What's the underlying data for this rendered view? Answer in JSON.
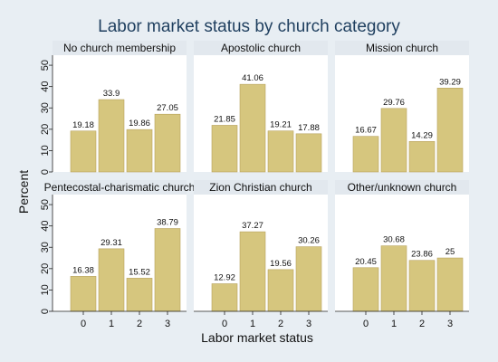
{
  "chart_data": {
    "type": "bar",
    "title": "Labor market status by church category",
    "xlabel": "Labor market status",
    "ylabel": "Percent",
    "categories": [
      "0",
      "1",
      "2",
      "3"
    ],
    "yticks": [
      "0",
      "10",
      "20",
      "30",
      "40",
      "50"
    ],
    "ylim": [
      0,
      53
    ],
    "grid": false,
    "colors": {
      "bar": "#d6c67e",
      "bar_stroke": "#b7a25c",
      "panel_header": "#e2e8ee",
      "plot_bg": "#ffffff",
      "page_bg": "#e8eef3"
    },
    "panels": [
      {
        "name": "No church membership",
        "values": [
          19.18,
          33.9,
          19.86,
          27.05
        ],
        "labels": [
          "19.18",
          "33.9",
          "19.86",
          "27.05"
        ]
      },
      {
        "name": "Apostolic church",
        "values": [
          21.85,
          41.06,
          19.21,
          17.88
        ],
        "labels": [
          "21.85",
          "41.06",
          "19.21",
          "17.88"
        ]
      },
      {
        "name": "Mission church",
        "values": [
          16.67,
          29.76,
          14.29,
          39.29
        ],
        "labels": [
          "16.67",
          "29.76",
          "14.29",
          "39.29"
        ]
      },
      {
        "name": "Pentecostal-charismatic church",
        "values": [
          16.38,
          29.31,
          15.52,
          38.79
        ],
        "labels": [
          "16.38",
          "29.31",
          "15.52",
          "38.79"
        ]
      },
      {
        "name": "Zion Christian church",
        "values": [
          12.92,
          37.27,
          19.56,
          30.26
        ],
        "labels": [
          "12.92",
          "37.27",
          "19.56",
          "30.26"
        ]
      },
      {
        "name": "Other/unknown church",
        "values": [
          20.45,
          30.68,
          23.86,
          25
        ],
        "labels": [
          "20.45",
          "30.68",
          "23.86",
          "25"
        ]
      }
    ]
  }
}
